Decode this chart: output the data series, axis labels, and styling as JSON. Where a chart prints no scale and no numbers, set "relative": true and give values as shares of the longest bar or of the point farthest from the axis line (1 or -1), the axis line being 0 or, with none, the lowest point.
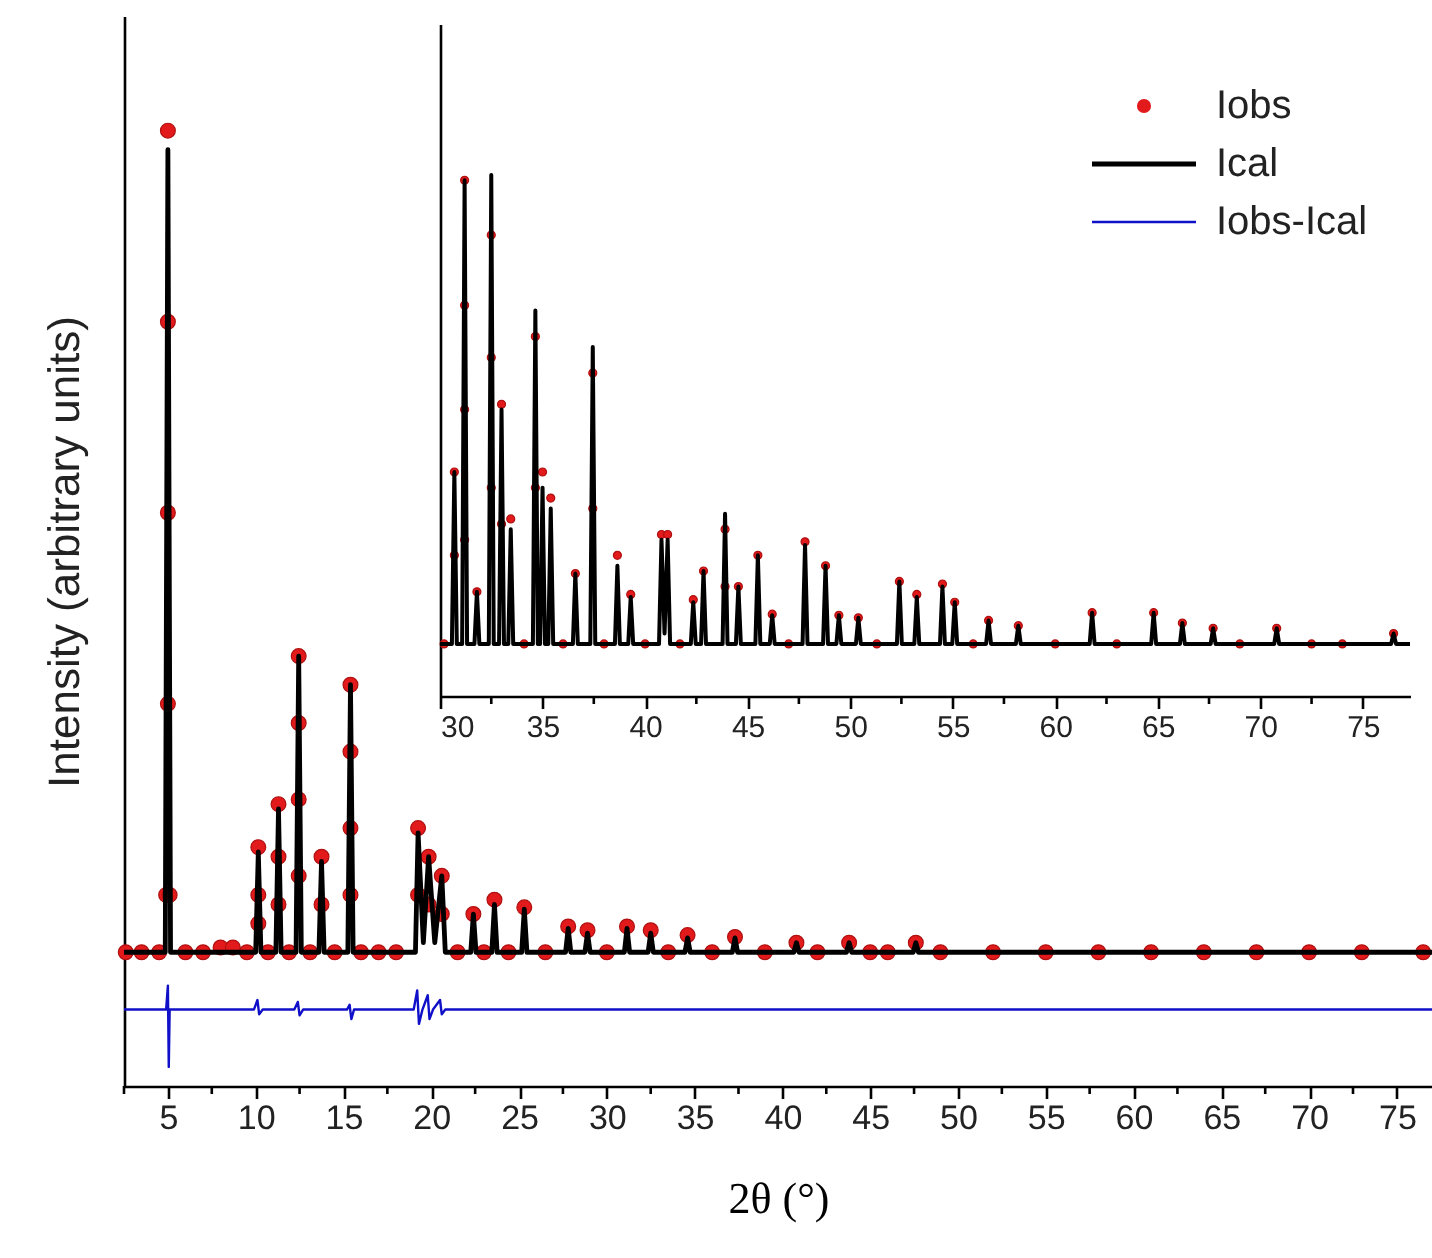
{
  "chart_data": [
    {
      "type": "line",
      "xlabel": "2θ (°)",
      "ylabel": "Intensity (arbitrary units)",
      "relative": true,
      "tick_labels": "x",
      "grid": false,
      "legend": "top right",
      "xlim": [
        2.5,
        77
      ],
      "xticks": [
        {
          "value": 2.5,
          "label": null
        },
        5,
        {
          "value": 7.5,
          "label": null
        },
        10,
        {
          "value": 12.5,
          "label": null
        },
        15,
        {
          "value": 17.5,
          "label": null
        },
        20,
        {
          "value": 22.5,
          "label": null
        },
        25,
        {
          "value": 27.5,
          "label": null
        },
        30,
        {
          "value": 32.5,
          "label": null
        },
        35,
        {
          "value": 37.5,
          "label": null
        },
        40,
        {
          "value": 42.5,
          "label": null
        },
        45,
        {
          "value": 47.5,
          "label": null
        },
        50,
        {
          "value": 52.5,
          "label": null
        },
        55,
        {
          "value": 57.5,
          "label": null
        },
        60,
        {
          "value": 62.5,
          "label": null
        },
        65,
        {
          "value": 67.5,
          "label": null
        },
        70,
        {
          "value": 72.5,
          "label": null
        },
        75
      ],
      "series": [
        {
          "name": "Iobs",
          "type": "scatter",
          "marker": "circle",
          "color": "#e31a1c",
          "x": [
            2.6,
            3.5,
            4.5,
            4.9,
            5.0,
            5.0,
            5.0,
            5.0,
            5.1,
            6,
            7,
            8,
            8.7,
            9.5,
            10.15,
            10.15,
            10.15,
            10.7,
            11.3,
            11.3,
            11.3,
            11.9,
            12.45,
            12.45,
            12.45,
            12.45,
            13.1,
            13.75,
            13.75,
            14.5,
            15.4,
            15.4,
            15.4,
            15.4,
            16,
            17,
            18,
            19.25,
            19.25,
            19.85,
            19.85,
            20.6,
            20.6,
            21.5,
            22.4,
            23,
            23.6,
            24.4,
            25.3,
            26.5,
            27.8,
            28.9,
            30,
            31.15,
            32.5,
            33.5,
            34.6,
            36,
            37.3,
            39,
            40.8,
            42,
            43.8,
            45,
            46,
            47.6,
            49,
            52,
            55,
            58,
            61,
            64,
            67,
            70,
            73,
            76.5
          ],
          "values": [
            0.14,
            0.14,
            0.14,
            0.2,
            1.0,
            0.8,
            0.6,
            0.4,
            0.2,
            0.14,
            0.14,
            0.145,
            0.145,
            0.14,
            0.25,
            0.2,
            0.17,
            0.14,
            0.295,
            0.24,
            0.19,
            0.14,
            0.45,
            0.38,
            0.3,
            0.22,
            0.14,
            0.24,
            0.19,
            0.14,
            0.42,
            0.35,
            0.27,
            0.2,
            0.14,
            0.14,
            0.14,
            0.27,
            0.2,
            0.24,
            0.19,
            0.22,
            0.18,
            0.14,
            0.18,
            0.14,
            0.195,
            0.14,
            0.187,
            0.14,
            0.167,
            0.163,
            0.14,
            0.167,
            0.163,
            0.14,
            0.158,
            0.14,
            0.156,
            0.14,
            0.15,
            0.14,
            0.15,
            0.14,
            0.14,
            0.15,
            0.14,
            0.14,
            0.14,
            0.14,
            0.14,
            0.14,
            0.14,
            0.14,
            0.14,
            0.14
          ]
        },
        {
          "name": "Ical",
          "color": "#000000",
          "x": [
            2.5,
            4.85,
            5.0,
            5.15,
            10.0,
            10.15,
            10.3,
            11.15,
            11.3,
            11.45,
            12.3,
            12.45,
            12.6,
            13.6,
            13.75,
            13.9,
            15.25,
            15.4,
            15.55,
            19.1,
            19.25,
            19.55,
            19.85,
            20.2,
            20.6,
            20.8,
            22.25,
            22.4,
            22.55,
            23.45,
            23.6,
            23.75,
            25.15,
            25.3,
            25.45,
            27.65,
            27.8,
            27.95,
            28.75,
            28.9,
            29.05,
            31.0,
            31.15,
            31.3,
            32.35,
            32.5,
            32.65,
            34.45,
            34.6,
            34.75,
            37.15,
            37.3,
            37.45,
            40.65,
            40.8,
            40.95,
            43.65,
            43.8,
            43.95,
            47.45,
            47.6,
            47.75,
            77
          ],
          "values": [
            0.14,
            0.14,
            0.98,
            0.14,
            0.14,
            0.245,
            0.14,
            0.14,
            0.29,
            0.14,
            0.14,
            0.45,
            0.14,
            0.14,
            0.235,
            0.14,
            0.14,
            0.42,
            0.14,
            0.14,
            0.265,
            0.15,
            0.24,
            0.15,
            0.22,
            0.14,
            0.14,
            0.18,
            0.14,
            0.14,
            0.19,
            0.14,
            0.14,
            0.185,
            0.14,
            0.14,
            0.165,
            0.14,
            0.14,
            0.16,
            0.14,
            0.14,
            0.165,
            0.14,
            0.14,
            0.16,
            0.14,
            0.14,
            0.155,
            0.14,
            0.14,
            0.155,
            0.14,
            0.14,
            0.15,
            0.14,
            0.14,
            0.15,
            0.14,
            0.14,
            0.15,
            0.14,
            0.14
          ]
        },
        {
          "name": "Iobs-Ical",
          "color": "#1010c8",
          "x": [
            2.5,
            4.9,
            5.0,
            5.05,
            5.1,
            9.9,
            10.1,
            10.2,
            10.4,
            12.2,
            12.4,
            12.5,
            12.7,
            15.2,
            15.35,
            15.45,
            15.6,
            19.0,
            19.2,
            19.3,
            19.5,
            19.8,
            19.9,
            20.1,
            20.5,
            20.6,
            20.8,
            77
          ],
          "values": [
            0.08,
            0.08,
            0.105,
            0.02,
            0.08,
            0.08,
            0.09,
            0.075,
            0.08,
            0.08,
            0.088,
            0.074,
            0.08,
            0.08,
            0.085,
            0.07,
            0.08,
            0.08,
            0.1,
            0.065,
            0.08,
            0.095,
            0.07,
            0.08,
            0.09,
            0.075,
            0.08,
            0.08
          ]
        }
      ]
    },
    {
      "type": "line",
      "relative": true,
      "tick_labels": "x",
      "grid": false,
      "xlim": [
        30,
        77.3
      ],
      "xticks": [
        30,
        {
          "value": 32.5,
          "label": null
        },
        35,
        {
          "value": 37.5,
          "label": null
        },
        40,
        {
          "value": 42.5,
          "label": null
        },
        45,
        {
          "value": 47.5,
          "label": null
        },
        50,
        {
          "value": 52.5,
          "label": null
        },
        55,
        {
          "value": 57.5,
          "label": null
        },
        60,
        {
          "value": 62.5,
          "label": null
        },
        65,
        {
          "value": 67.5,
          "label": null
        },
        70,
        {
          "value": 72.5,
          "label": null
        },
        75
      ],
      "series": [
        {
          "type": "scatter",
          "marker": "circle",
          "color": "#e31a1c",
          "x": [
            30.2,
            30.7,
            30.7,
            31.2,
            31.2,
            31.2,
            31.2,
            31.8,
            32.5,
            32.5,
            32.5,
            33.0,
            33.0,
            33.45,
            34.1,
            34.65,
            34.65,
            35.0,
            35.4,
            36.0,
            36.6,
            37.45,
            37.45,
            38.0,
            38.65,
            39.3,
            40.0,
            40.8,
            41.1,
            41.7,
            42.35,
            42.85,
            43.9,
            43.9,
            44.55,
            45.5,
            46.2,
            47.0,
            47.8,
            48.8,
            49.45,
            50.4,
            51.3,
            52.4,
            53.25,
            54.5,
            55.1,
            56.0,
            56.75,
            58.2,
            60.0,
            61.8,
            63.0,
            64.8,
            66.2,
            67.7,
            69.0,
            70.8,
            72.5,
            74.0,
            76.5
          ],
          "values": [
            0.1,
            0.43,
            0.27,
            0.99,
            0.75,
            0.55,
            0.3,
            0.2,
            0.885,
            0.65,
            0.4,
            0.56,
            0.33,
            0.34,
            0.1,
            0.69,
            0.4,
            0.43,
            0.38,
            0.1,
            0.235,
            0.62,
            0.36,
            0.1,
            0.27,
            0.195,
            0.1,
            0.31,
            0.31,
            0.1,
            0.185,
            0.24,
            0.32,
            0.21,
            0.21,
            0.27,
            0.157,
            0.1,
            0.296,
            0.25,
            0.155,
            0.15,
            0.1,
            0.22,
            0.195,
            0.215,
            0.18,
            0.1,
            0.145,
            0.135,
            0.1,
            0.16,
            0.1,
            0.16,
            0.14,
            0.13,
            0.1,
            0.13,
            0.1,
            0.1,
            0.12
          ]
        },
        {
          "color": "#000000",
          "x": [
            30,
            30.58,
            30.7,
            30.82,
            31.08,
            31.2,
            31.32,
            31.68,
            31.8,
            31.92,
            32.38,
            32.5,
            32.62,
            32.88,
            33.0,
            33.12,
            33.33,
            33.45,
            33.57,
            34.53,
            34.65,
            34.77,
            34.88,
            35.0,
            35.12,
            35.28,
            35.4,
            35.52,
            36.48,
            36.6,
            36.72,
            37.33,
            37.45,
            37.57,
            38.53,
            38.65,
            38.77,
            39.18,
            39.3,
            39.42,
            40.68,
            40.8,
            40.95,
            41.1,
            41.22,
            42.23,
            42.35,
            42.47,
            42.73,
            42.85,
            42.97,
            43.78,
            43.9,
            44.02,
            44.43,
            44.55,
            44.67,
            45.38,
            45.5,
            45.62,
            46.08,
            46.2,
            46.32,
            47.68,
            47.8,
            47.92,
            48.68,
            48.8,
            48.92,
            49.33,
            49.45,
            49.57,
            50.28,
            50.4,
            50.52,
            52.28,
            52.4,
            52.52,
            53.13,
            53.25,
            53.37,
            54.38,
            54.5,
            54.62,
            54.98,
            55.1,
            55.22,
            56.63,
            56.75,
            56.87,
            58.08,
            58.2,
            58.32,
            61.68,
            61.8,
            61.92,
            64.68,
            64.8,
            64.92,
            66.08,
            66.2,
            66.32,
            67.58,
            67.7,
            67.82,
            70.68,
            70.8,
            70.92,
            76.38,
            76.5,
            76.62,
            77.3
          ],
          "values": [
            0.1,
            0.1,
            0.43,
            0.1,
            0.1,
            0.99,
            0.1,
            0.1,
            0.2,
            0.1,
            0.1,
            1.0,
            0.1,
            0.1,
            0.55,
            0.1,
            0.1,
            0.32,
            0.1,
            0.1,
            0.74,
            0.1,
            0.1,
            0.4,
            0.1,
            0.1,
            0.36,
            0.1,
            0.1,
            0.235,
            0.1,
            0.1,
            0.67,
            0.1,
            0.1,
            0.25,
            0.1,
            0.1,
            0.19,
            0.1,
            0.1,
            0.3,
            0.12,
            0.3,
            0.1,
            0.1,
            0.18,
            0.1,
            0.1,
            0.24,
            0.1,
            0.1,
            0.35,
            0.1,
            0.1,
            0.21,
            0.1,
            0.1,
            0.27,
            0.1,
            0.1,
            0.155,
            0.1,
            0.1,
            0.29,
            0.1,
            0.1,
            0.25,
            0.1,
            0.1,
            0.155,
            0.1,
            0.1,
            0.15,
            0.1,
            0.1,
            0.22,
            0.1,
            0.1,
            0.19,
            0.1,
            0.1,
            0.21,
            0.1,
            0.1,
            0.18,
            0.1,
            0.1,
            0.145,
            0.1,
            0.1,
            0.135,
            0.1,
            0.1,
            0.16,
            0.1,
            0.1,
            0.16,
            0.1,
            0.1,
            0.14,
            0.1,
            0.1,
            0.13,
            0.1,
            0.1,
            0.13,
            0.1,
            0.1,
            0.12,
            0.1,
            0.1
          ]
        }
      ]
    }
  ]
}
